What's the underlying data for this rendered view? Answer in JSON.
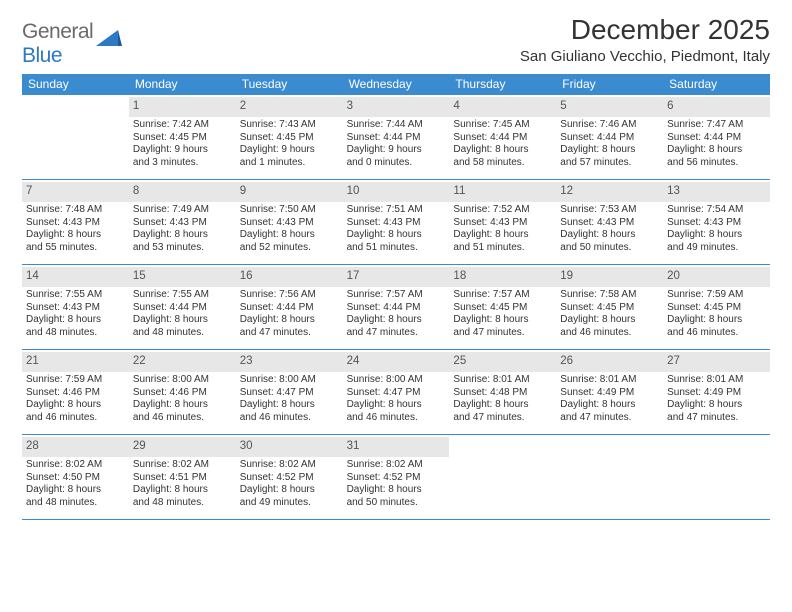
{
  "logo": {
    "text1": "General",
    "text2": "Blue"
  },
  "title": "December 2025",
  "location": "San Giuliano Vecchio, Piedmont, Italy",
  "colors": {
    "header_bg": "#3b8bd0",
    "header_text": "#ffffff",
    "daynum_bg": "#e7e7e7",
    "divider": "#3b8bd0",
    "logo_gray": "#6a6a6a",
    "logo_blue": "#2f78c4"
  },
  "day_names": [
    "Sunday",
    "Monday",
    "Tuesday",
    "Wednesday",
    "Thursday",
    "Friday",
    "Saturday"
  ],
  "weeks": [
    [
      {
        "n": ""
      },
      {
        "n": "1",
        "sr": "Sunrise: 7:42 AM",
        "ss": "Sunset: 4:45 PM",
        "d1": "Daylight: 9 hours",
        "d2": "and 3 minutes."
      },
      {
        "n": "2",
        "sr": "Sunrise: 7:43 AM",
        "ss": "Sunset: 4:45 PM",
        "d1": "Daylight: 9 hours",
        "d2": "and 1 minutes."
      },
      {
        "n": "3",
        "sr": "Sunrise: 7:44 AM",
        "ss": "Sunset: 4:44 PM",
        "d1": "Daylight: 9 hours",
        "d2": "and 0 minutes."
      },
      {
        "n": "4",
        "sr": "Sunrise: 7:45 AM",
        "ss": "Sunset: 4:44 PM",
        "d1": "Daylight: 8 hours",
        "d2": "and 58 minutes."
      },
      {
        "n": "5",
        "sr": "Sunrise: 7:46 AM",
        "ss": "Sunset: 4:44 PM",
        "d1": "Daylight: 8 hours",
        "d2": "and 57 minutes."
      },
      {
        "n": "6",
        "sr": "Sunrise: 7:47 AM",
        "ss": "Sunset: 4:44 PM",
        "d1": "Daylight: 8 hours",
        "d2": "and 56 minutes."
      }
    ],
    [
      {
        "n": "7",
        "sr": "Sunrise: 7:48 AM",
        "ss": "Sunset: 4:43 PM",
        "d1": "Daylight: 8 hours",
        "d2": "and 55 minutes."
      },
      {
        "n": "8",
        "sr": "Sunrise: 7:49 AM",
        "ss": "Sunset: 4:43 PM",
        "d1": "Daylight: 8 hours",
        "d2": "and 53 minutes."
      },
      {
        "n": "9",
        "sr": "Sunrise: 7:50 AM",
        "ss": "Sunset: 4:43 PM",
        "d1": "Daylight: 8 hours",
        "d2": "and 52 minutes."
      },
      {
        "n": "10",
        "sr": "Sunrise: 7:51 AM",
        "ss": "Sunset: 4:43 PM",
        "d1": "Daylight: 8 hours",
        "d2": "and 51 minutes."
      },
      {
        "n": "11",
        "sr": "Sunrise: 7:52 AM",
        "ss": "Sunset: 4:43 PM",
        "d1": "Daylight: 8 hours",
        "d2": "and 51 minutes."
      },
      {
        "n": "12",
        "sr": "Sunrise: 7:53 AM",
        "ss": "Sunset: 4:43 PM",
        "d1": "Daylight: 8 hours",
        "d2": "and 50 minutes."
      },
      {
        "n": "13",
        "sr": "Sunrise: 7:54 AM",
        "ss": "Sunset: 4:43 PM",
        "d1": "Daylight: 8 hours",
        "d2": "and 49 minutes."
      }
    ],
    [
      {
        "n": "14",
        "sr": "Sunrise: 7:55 AM",
        "ss": "Sunset: 4:43 PM",
        "d1": "Daylight: 8 hours",
        "d2": "and 48 minutes."
      },
      {
        "n": "15",
        "sr": "Sunrise: 7:55 AM",
        "ss": "Sunset: 4:44 PM",
        "d1": "Daylight: 8 hours",
        "d2": "and 48 minutes."
      },
      {
        "n": "16",
        "sr": "Sunrise: 7:56 AM",
        "ss": "Sunset: 4:44 PM",
        "d1": "Daylight: 8 hours",
        "d2": "and 47 minutes."
      },
      {
        "n": "17",
        "sr": "Sunrise: 7:57 AM",
        "ss": "Sunset: 4:44 PM",
        "d1": "Daylight: 8 hours",
        "d2": "and 47 minutes."
      },
      {
        "n": "18",
        "sr": "Sunrise: 7:57 AM",
        "ss": "Sunset: 4:45 PM",
        "d1": "Daylight: 8 hours",
        "d2": "and 47 minutes."
      },
      {
        "n": "19",
        "sr": "Sunrise: 7:58 AM",
        "ss": "Sunset: 4:45 PM",
        "d1": "Daylight: 8 hours",
        "d2": "and 46 minutes."
      },
      {
        "n": "20",
        "sr": "Sunrise: 7:59 AM",
        "ss": "Sunset: 4:45 PM",
        "d1": "Daylight: 8 hours",
        "d2": "and 46 minutes."
      }
    ],
    [
      {
        "n": "21",
        "sr": "Sunrise: 7:59 AM",
        "ss": "Sunset: 4:46 PM",
        "d1": "Daylight: 8 hours",
        "d2": "and 46 minutes."
      },
      {
        "n": "22",
        "sr": "Sunrise: 8:00 AM",
        "ss": "Sunset: 4:46 PM",
        "d1": "Daylight: 8 hours",
        "d2": "and 46 minutes."
      },
      {
        "n": "23",
        "sr": "Sunrise: 8:00 AM",
        "ss": "Sunset: 4:47 PM",
        "d1": "Daylight: 8 hours",
        "d2": "and 46 minutes."
      },
      {
        "n": "24",
        "sr": "Sunrise: 8:00 AM",
        "ss": "Sunset: 4:47 PM",
        "d1": "Daylight: 8 hours",
        "d2": "and 46 minutes."
      },
      {
        "n": "25",
        "sr": "Sunrise: 8:01 AM",
        "ss": "Sunset: 4:48 PM",
        "d1": "Daylight: 8 hours",
        "d2": "and 47 minutes."
      },
      {
        "n": "26",
        "sr": "Sunrise: 8:01 AM",
        "ss": "Sunset: 4:49 PM",
        "d1": "Daylight: 8 hours",
        "d2": "and 47 minutes."
      },
      {
        "n": "27",
        "sr": "Sunrise: 8:01 AM",
        "ss": "Sunset: 4:49 PM",
        "d1": "Daylight: 8 hours",
        "d2": "and 47 minutes."
      }
    ],
    [
      {
        "n": "28",
        "sr": "Sunrise: 8:02 AM",
        "ss": "Sunset: 4:50 PM",
        "d1": "Daylight: 8 hours",
        "d2": "and 48 minutes."
      },
      {
        "n": "29",
        "sr": "Sunrise: 8:02 AM",
        "ss": "Sunset: 4:51 PM",
        "d1": "Daylight: 8 hours",
        "d2": "and 48 minutes."
      },
      {
        "n": "30",
        "sr": "Sunrise: 8:02 AM",
        "ss": "Sunset: 4:52 PM",
        "d1": "Daylight: 8 hours",
        "d2": "and 49 minutes."
      },
      {
        "n": "31",
        "sr": "Sunrise: 8:02 AM",
        "ss": "Sunset: 4:52 PM",
        "d1": "Daylight: 8 hours",
        "d2": "and 50 minutes."
      },
      {
        "n": ""
      },
      {
        "n": ""
      },
      {
        "n": ""
      }
    ]
  ]
}
